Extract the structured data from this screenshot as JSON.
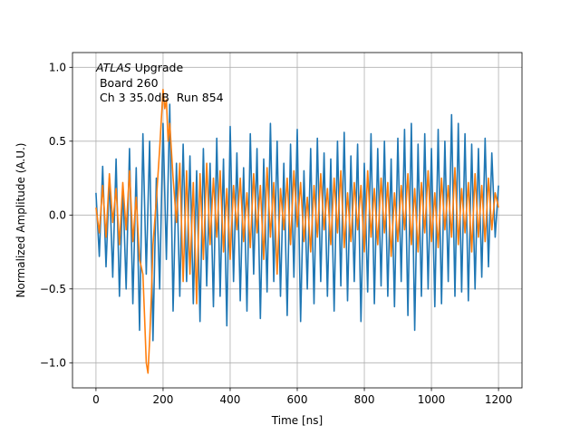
{
  "chart_data": {
    "type": "line",
    "title": "",
    "xlabel": "Time [ns]",
    "ylabel": "Normalized Amplitude (A.U.)",
    "xlim": [
      -70,
      1270
    ],
    "ylim": [
      -1.17,
      1.1
    ],
    "xticks": [
      0,
      200,
      400,
      600,
      800,
      1000,
      1200
    ],
    "xtick_labels": [
      "0",
      "200",
      "400",
      "600",
      "800",
      "1000",
      "1200"
    ],
    "yticks": [
      -1.0,
      -0.5,
      0.0,
      0.5,
      1.0
    ],
    "ytick_labels": [
      "−1.0",
      "−0.5",
      "0.0",
      "0.5",
      "1.0"
    ],
    "grid": true,
    "annotation": {
      "line1_italic": "ATLAS",
      "line1_rest": " Upgrade",
      "line2": " Board 260",
      "line3": " Ch 3 35.0dB  Run 854"
    },
    "series": [
      {
        "color": "#1f77b4",
        "x": [
          0,
          10,
          20,
          30,
          40,
          50,
          60,
          70,
          80,
          90,
          100,
          110,
          120,
          130,
          140,
          150,
          160,
          170,
          180,
          190,
          200,
          210,
          220,
          230,
          240,
          250,
          260,
          270,
          280,
          290,
          300,
          310,
          320,
          330,
          340,
          350,
          360,
          370,
          380,
          390,
          400,
          410,
          420,
          430,
          440,
          450,
          460,
          470,
          480,
          490,
          500,
          510,
          520,
          530,
          540,
          550,
          560,
          570,
          580,
          590,
          600,
          610,
          620,
          630,
          640,
          650,
          660,
          670,
          680,
          690,
          700,
          710,
          720,
          730,
          740,
          750,
          760,
          770,
          780,
          790,
          800,
          810,
          820,
          830,
          840,
          850,
          860,
          870,
          880,
          890,
          900,
          910,
          920,
          930,
          940,
          950,
          960,
          970,
          980,
          990,
          1000,
          1010,
          1020,
          1030,
          1040,
          1050,
          1060,
          1070,
          1080,
          1090,
          1100,
          1110,
          1120,
          1130,
          1140,
          1150,
          1160,
          1170,
          1180,
          1190,
          1200
        ],
        "values": [
          0.15,
          -0.28,
          0.33,
          -0.35,
          0.25,
          -0.42,
          0.38,
          -0.55,
          0.2,
          -0.5,
          0.45,
          -0.6,
          0.32,
          -0.78,
          0.55,
          -0.4,
          0.5,
          -0.85,
          0.25,
          -0.5,
          0.62,
          -0.3,
          0.75,
          -0.65,
          0.35,
          -0.55,
          0.48,
          -0.45,
          0.4,
          -0.6,
          0.3,
          -0.72,
          0.45,
          -0.48,
          0.35,
          -0.62,
          0.52,
          -0.55,
          0.38,
          -0.75,
          0.6,
          -0.45,
          0.42,
          -0.58,
          0.32,
          -0.65,
          0.55,
          -0.4,
          0.45,
          -0.7,
          0.38,
          -0.52,
          0.62,
          -0.45,
          0.5,
          -0.55,
          0.35,
          -0.68,
          0.48,
          -0.42,
          0.58,
          -0.72,
          0.3,
          -0.5,
          0.45,
          -0.6,
          0.52,
          -0.45,
          0.42,
          -0.55,
          0.38,
          -0.65,
          0.5,
          -0.48,
          0.56,
          -0.58,
          0.4,
          -0.45,
          0.48,
          -0.72,
          0.35,
          -0.52,
          0.55,
          -0.6,
          0.45,
          -0.48,
          0.5,
          -0.55,
          0.38,
          -0.62,
          0.52,
          -0.45,
          0.58,
          -0.68,
          0.62,
          -0.78,
          0.48,
          -0.55,
          0.55,
          -0.5,
          0.45,
          -0.62,
          0.58,
          -0.6,
          0.5,
          -0.45,
          0.68,
          -0.55,
          0.62,
          -0.52,
          0.55,
          -0.58,
          0.48,
          -0.5,
          0.45,
          -0.42,
          0.52,
          -0.35,
          0.42,
          -0.15,
          0.2
        ]
      },
      {
        "color": "#ff7f0e",
        "x": [
          0,
          10,
          20,
          30,
          40,
          50,
          60,
          70,
          80,
          90,
          100,
          110,
          120,
          130,
          140,
          145,
          150,
          155,
          160,
          165,
          170,
          180,
          190,
          200,
          205,
          210,
          215,
          220,
          230,
          240,
          250,
          260,
          270,
          280,
          290,
          300,
          310,
          320,
          330,
          340,
          350,
          360,
          370,
          380,
          390,
          400,
          410,
          420,
          430,
          440,
          450,
          460,
          470,
          480,
          490,
          500,
          510,
          520,
          530,
          540,
          550,
          560,
          570,
          580,
          590,
          600,
          610,
          620,
          630,
          640,
          650,
          660,
          670,
          680,
          690,
          700,
          710,
          720,
          730,
          740,
          750,
          760,
          770,
          780,
          790,
          800,
          810,
          820,
          830,
          840,
          850,
          860,
          870,
          880,
          890,
          900,
          910,
          920,
          930,
          940,
          950,
          960,
          970,
          980,
          990,
          1000,
          1010,
          1020,
          1030,
          1040,
          1050,
          1060,
          1070,
          1080,
          1090,
          1100,
          1110,
          1120,
          1130,
          1140,
          1150,
          1160,
          1170,
          1180,
          1190,
          1200
        ],
        "values": [
          0.05,
          -0.12,
          0.2,
          -0.15,
          0.28,
          -0.05,
          0.18,
          -0.2,
          0.22,
          -0.1,
          0.3,
          -0.18,
          0.12,
          -0.3,
          -0.4,
          -0.7,
          -1.0,
          -1.07,
          -0.85,
          -0.55,
          -0.2,
          0.1,
          0.45,
          0.85,
          0.72,
          0.78,
          0.5,
          0.62,
          0.25,
          -0.05,
          0.35,
          -0.45,
          0.3,
          -0.4,
          0.22,
          -0.6,
          0.28,
          -0.3,
          0.35,
          -0.2,
          0.25,
          -0.15,
          0.3,
          -0.25,
          0.18,
          -0.3,
          0.2,
          -0.1,
          0.25,
          -0.18,
          0.15,
          -0.22,
          0.28,
          -0.12,
          0.2,
          -0.3,
          0.32,
          -0.15,
          0.22,
          -0.4,
          0.18,
          -0.1,
          0.25,
          -0.2,
          0.3,
          -0.08,
          0.22,
          -0.18,
          0.12,
          -0.25,
          0.2,
          -0.15,
          0.28,
          -0.1,
          0.18,
          -0.2,
          0.25,
          -0.12,
          0.3,
          -0.22,
          0.15,
          -0.18,
          0.22,
          -0.1,
          0.2,
          -0.25,
          0.3,
          -0.15,
          0.18,
          -0.2,
          0.25,
          -0.12,
          0.22,
          -0.28,
          0.15,
          -0.18,
          0.2,
          -0.1,
          0.28,
          -0.2,
          0.18,
          -0.25,
          0.22,
          -0.12,
          0.3,
          -0.18,
          0.15,
          -0.22,
          0.25,
          -0.1,
          0.2,
          -0.15,
          0.32,
          -0.2,
          0.18,
          -0.12,
          0.22,
          -0.25,
          0.28,
          -0.15,
          0.2,
          -0.18,
          0.25,
          -0.1,
          0.15,
          0.05
        ]
      }
    ]
  }
}
